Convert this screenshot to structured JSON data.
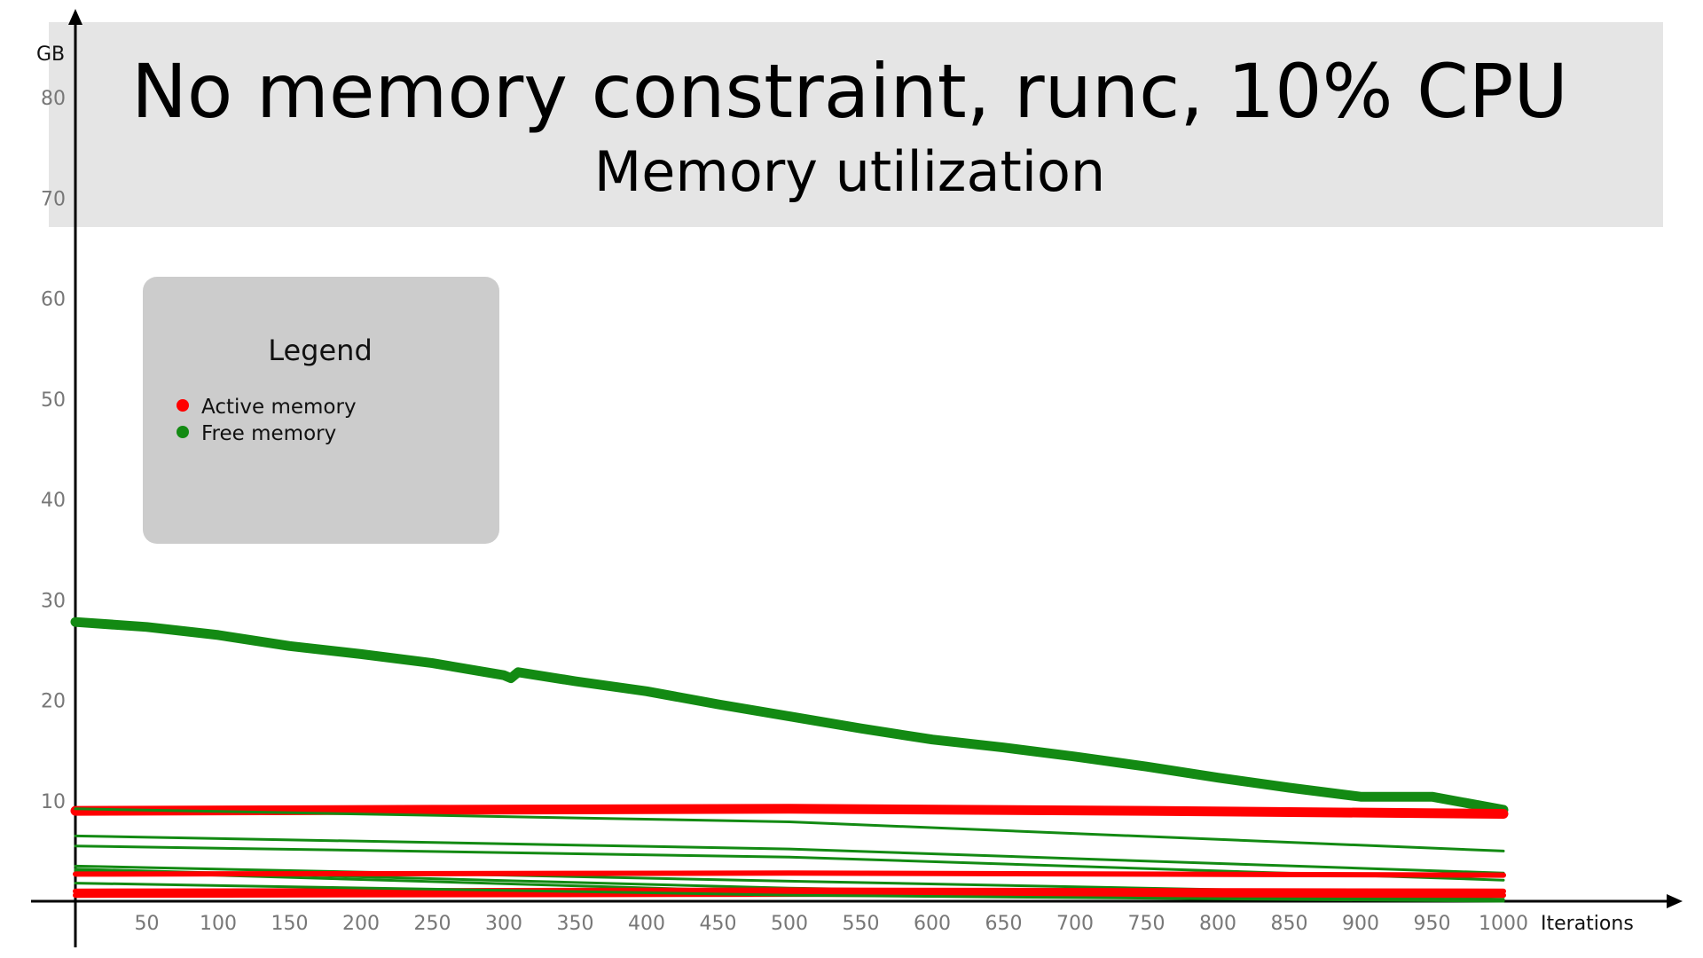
{
  "chart_data": {
    "type": "line",
    "title": "No memory constraint, runc, 10% CPU",
    "subtitle": "Memory utilization",
    "xlabel": "Iterations",
    "ylabel": "GB",
    "xlim": [
      0,
      1000
    ],
    "ylim": [
      0,
      80
    ],
    "x_ticks": [
      50,
      100,
      150,
      200,
      250,
      300,
      350,
      400,
      450,
      500,
      550,
      600,
      650,
      700,
      750,
      800,
      850,
      900,
      950,
      1000
    ],
    "y_ticks": [
      10,
      20,
      30,
      40,
      50,
      60,
      70,
      80
    ],
    "grid": false,
    "legend": {
      "title": "Legend",
      "position": "top-left",
      "items": [
        {
          "label": "Active memory",
          "color": "#ff0000"
        },
        {
          "label": "Free memory",
          "color": "#138a13"
        }
      ]
    },
    "series": [
      {
        "group": "Free memory",
        "color": "#138a13",
        "weight": "bold",
        "x": [
          0,
          50,
          100,
          150,
          200,
          250,
          300,
          305,
          310,
          350,
          400,
          450,
          500,
          550,
          600,
          650,
          700,
          750,
          800,
          850,
          900,
          950,
          1000
        ],
        "y": [
          27.8,
          27.3,
          26.5,
          25.4,
          24.6,
          23.7,
          22.5,
          22.2,
          22.8,
          21.9,
          20.9,
          19.6,
          18.4,
          17.2,
          16.1,
          15.3,
          14.4,
          13.4,
          12.3,
          11.3,
          10.4,
          10.4,
          9.1
        ]
      },
      {
        "group": "Active memory",
        "color": "#ff0000",
        "weight": "bold",
        "x": [
          0,
          250,
          500,
          750,
          1000
        ],
        "y": [
          9.0,
          9.1,
          9.2,
          9.0,
          8.7
        ]
      },
      {
        "group": "Free memory",
        "color": "#138a13",
        "weight": "thin",
        "x": [
          0,
          500,
          1000
        ],
        "y": [
          9.2,
          7.9,
          5.0
        ]
      },
      {
        "group": "Free memory",
        "color": "#138a13",
        "weight": "thin",
        "x": [
          0,
          500,
          1000
        ],
        "y": [
          6.5,
          5.2,
          2.8
        ]
      },
      {
        "group": "Free memory",
        "color": "#138a13",
        "weight": "thin",
        "x": [
          0,
          500,
          1000
        ],
        "y": [
          5.5,
          4.4,
          2.1
        ]
      },
      {
        "group": "Free memory",
        "color": "#138a13",
        "weight": "thin",
        "x": [
          0,
          500,
          1000
        ],
        "y": [
          3.5,
          2.0,
          0.6
        ]
      },
      {
        "group": "Free memory",
        "color": "#138a13",
        "weight": "thin",
        "x": [
          0,
          500,
          1000
        ],
        "y": [
          3.2,
          1.3,
          0.2
        ]
      },
      {
        "group": "Free memory",
        "color": "#138a13",
        "weight": "thin",
        "x": [
          0,
          500,
          1000
        ],
        "y": [
          3.0,
          0.9,
          0.1
        ]
      },
      {
        "group": "Active memory",
        "color": "#ff0000",
        "weight": "medium",
        "x": [
          0,
          500,
          1000
        ],
        "y": [
          2.7,
          2.8,
          2.6
        ]
      },
      {
        "group": "Active memory",
        "color": "#ff0000",
        "weight": "medium",
        "x": [
          0,
          500,
          1000
        ],
        "y": [
          1.0,
          1.1,
          1.0
        ]
      },
      {
        "group": "Active memory",
        "color": "#ff0000",
        "weight": "medium",
        "x": [
          0,
          500,
          1000
        ],
        "y": [
          0.6,
          0.7,
          0.6
        ]
      },
      {
        "group": "Free memory",
        "color": "#138a13",
        "weight": "thin",
        "x": [
          0,
          500,
          1000
        ],
        "y": [
          1.8,
          0.6,
          0.0
        ]
      }
    ]
  }
}
